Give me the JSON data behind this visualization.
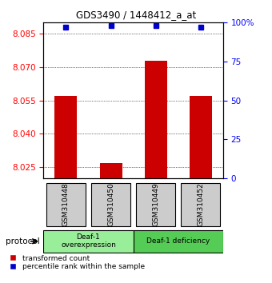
{
  "title": "GDS3490 / 1448412_a_at",
  "samples": [
    "GSM310448",
    "GSM310450",
    "GSM310449",
    "GSM310452"
  ],
  "bar_values": [
    8.057,
    8.027,
    8.073,
    8.057
  ],
  "percentile_values": [
    97,
    98,
    98,
    97
  ],
  "ylim_left": [
    8.02,
    8.09
  ],
  "ylim_right": [
    0,
    100
  ],
  "yticks_left": [
    8.025,
    8.04,
    8.055,
    8.07,
    8.085
  ],
  "yticks_right": [
    0,
    25,
    50,
    75,
    100
  ],
  "bar_color": "#cc0000",
  "percentile_color": "#0000cc",
  "bar_width": 0.5,
  "groups": [
    {
      "label": "Deaf-1\noverexpression",
      "samples": [
        0,
        1
      ],
      "color": "#99ee99"
    },
    {
      "label": "Deaf-1 deficiency",
      "samples": [
        2,
        3
      ],
      "color": "#55cc55"
    }
  ],
  "protocol_label": "protocol",
  "background_color": "#ffffff",
  "plot_bg_color": "#ffffff",
  "grid_color": "#000000",
  "sample_box_color": "#cccccc",
  "legend_red_label": "transformed count",
  "legend_blue_label": "percentile rank within the sample"
}
